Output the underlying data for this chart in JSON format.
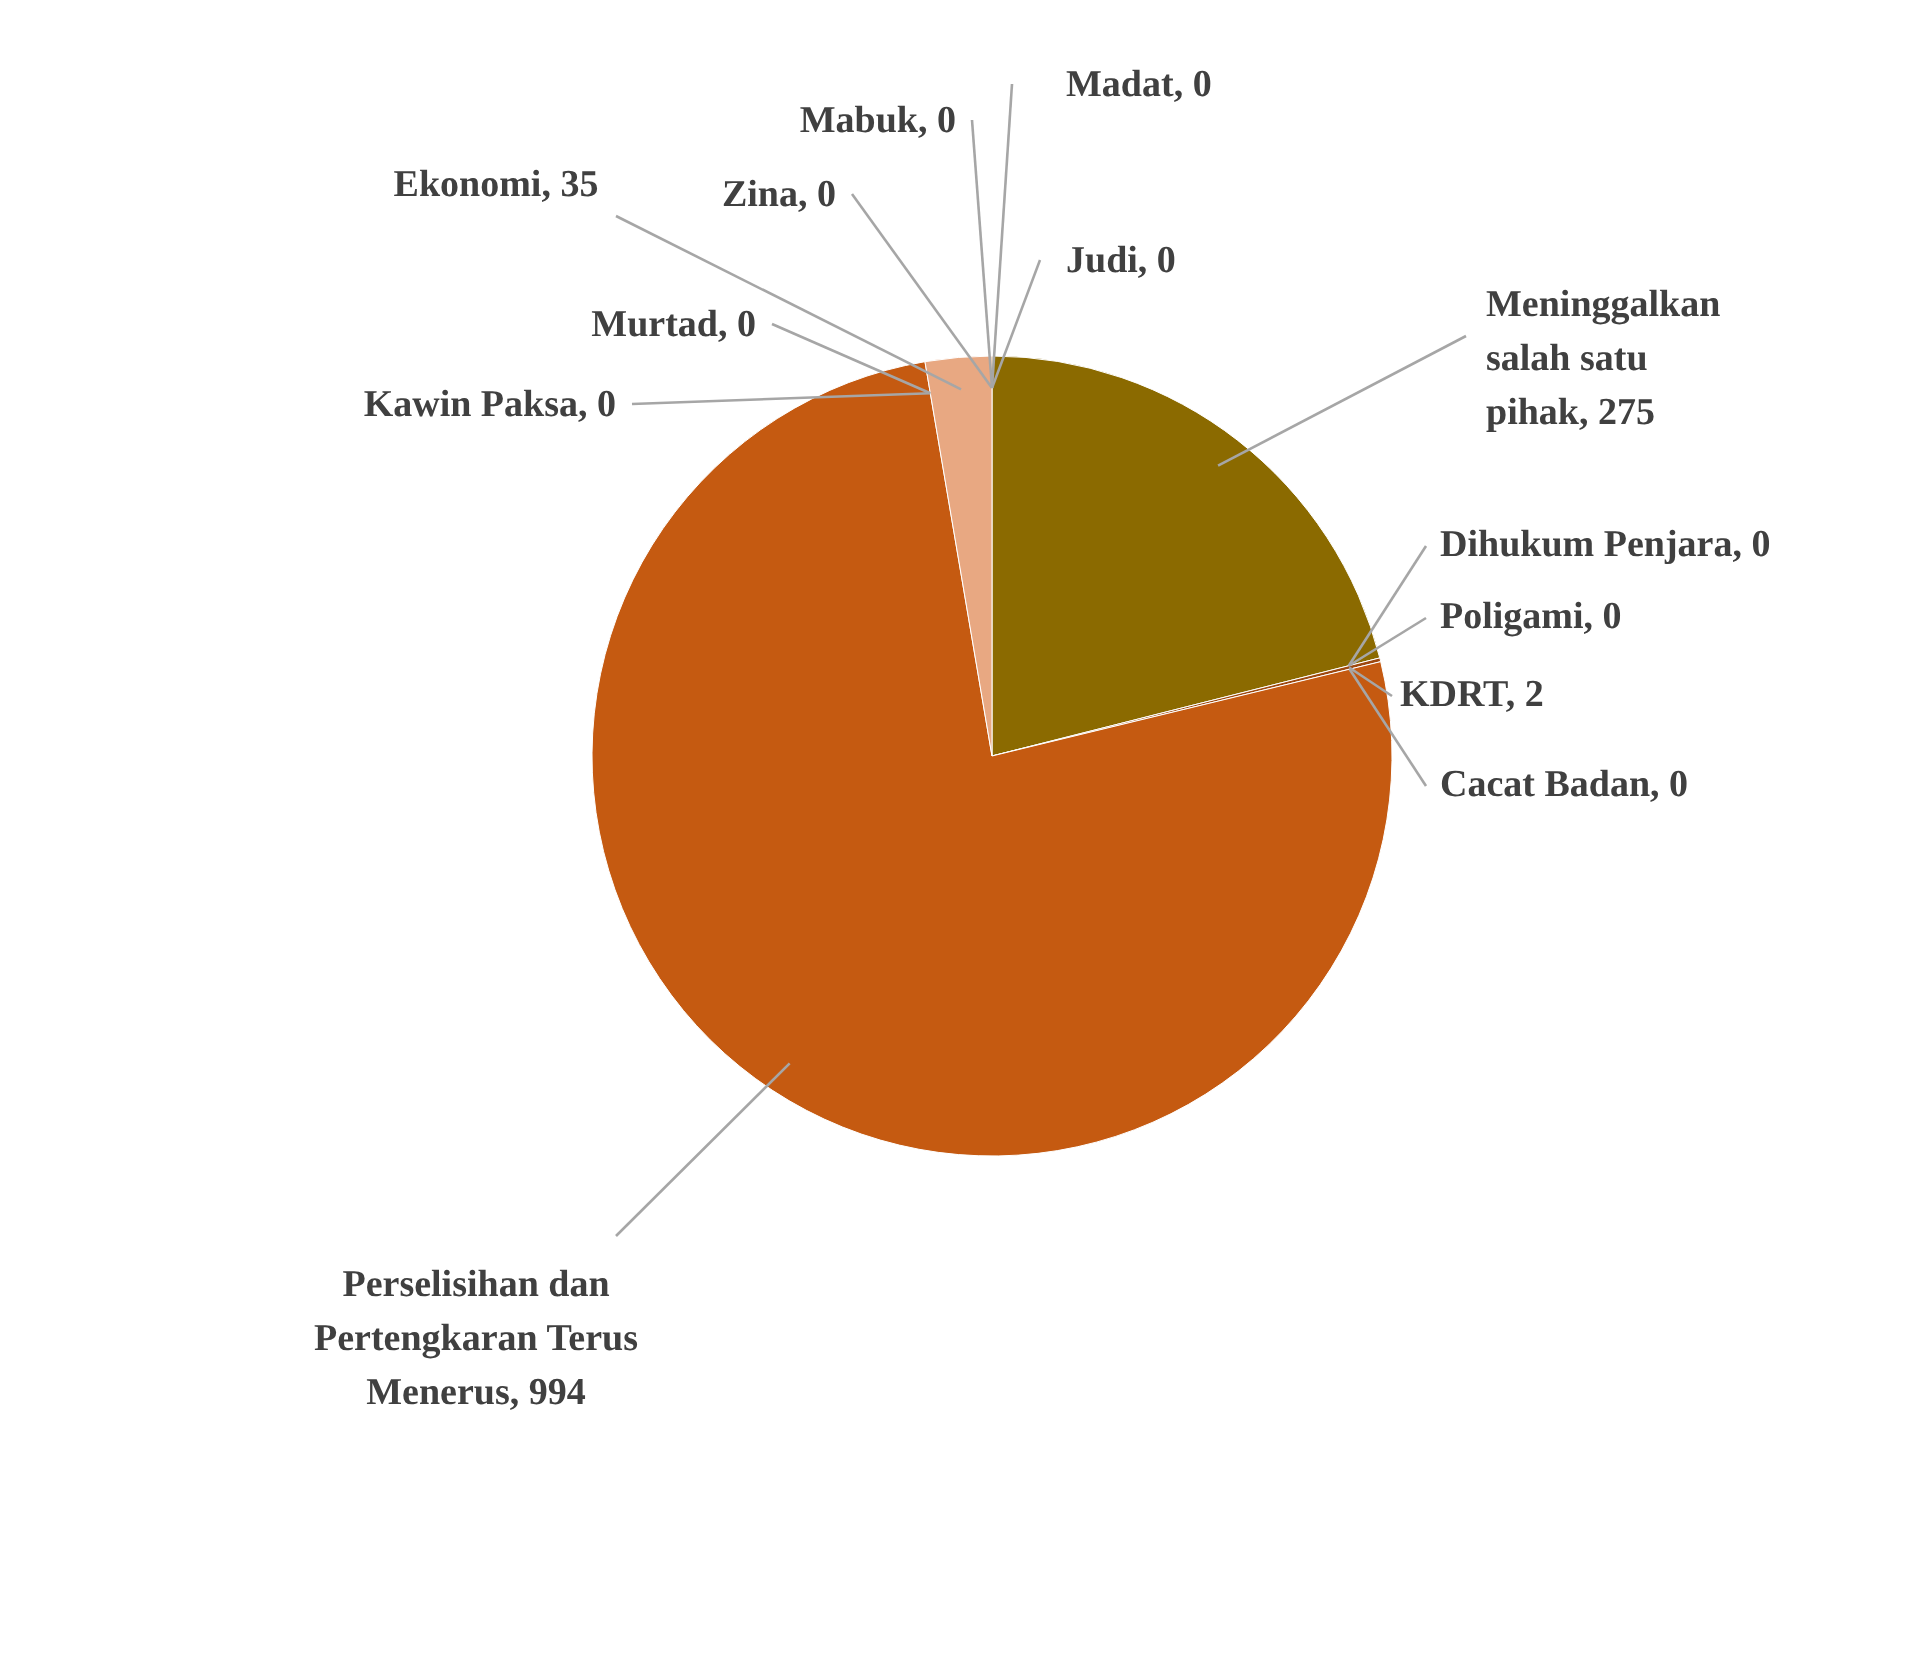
{
  "chart_data": {
    "type": "pie",
    "categories": [
      "Judi",
      "Meninggalkan salah satu pihak",
      "Dihukum Penjara",
      "Poligami",
      "KDRT",
      "Cacat Badan",
      "Perselisihan dan Pertengkaran Terus Menerus",
      "Kawin Paksa",
      "Murtad",
      "Ekonomi",
      "Zina",
      "Mabuk",
      "Madat"
    ],
    "values": [
      0,
      275,
      0,
      0,
      2,
      0,
      994,
      0,
      0,
      35,
      0,
      0,
      0
    ],
    "colors": [
      "#7f7f7f",
      "#8b6a00",
      "#a5a5a5",
      "#5b9bd5",
      "#9e480e",
      "#636363",
      "#c55a11",
      "#997300",
      "#264478",
      "#e8a882",
      "#43682b",
      "#255e91",
      "#698ed0"
    ],
    "value_labels": [
      ", 0",
      ", 275",
      ", 0",
      ", 0",
      ", 2",
      ", 0",
      ", 994",
      ", 0",
      ", 0",
      ", 35",
      ", 0",
      ", 0",
      ", 0"
    ]
  }
}
